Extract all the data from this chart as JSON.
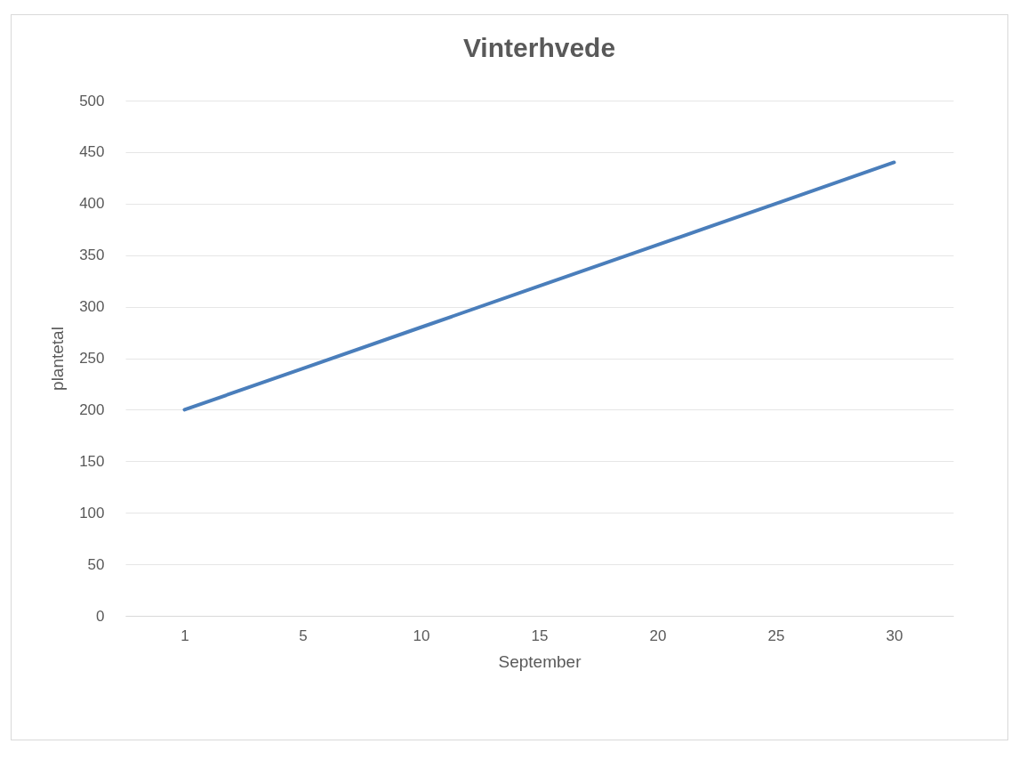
{
  "chart_data": {
    "type": "line",
    "title": "Vinterhvede",
    "xlabel": "September",
    "ylabel": "plantetal",
    "categories": [
      "1",
      "5",
      "10",
      "15",
      "20",
      "25",
      "30"
    ],
    "series": [
      {
        "color": "#4a7ebb",
        "values": [
          200,
          240,
          280,
          320,
          360,
          400,
          440
        ]
      }
    ],
    "ylim": [
      0,
      500
    ],
    "yticks": [
      0,
      50,
      100,
      150,
      200,
      250,
      300,
      350,
      400,
      450,
      500
    ],
    "grid": "y",
    "legend": false,
    "marker": "none",
    "line_style": "solid"
  }
}
